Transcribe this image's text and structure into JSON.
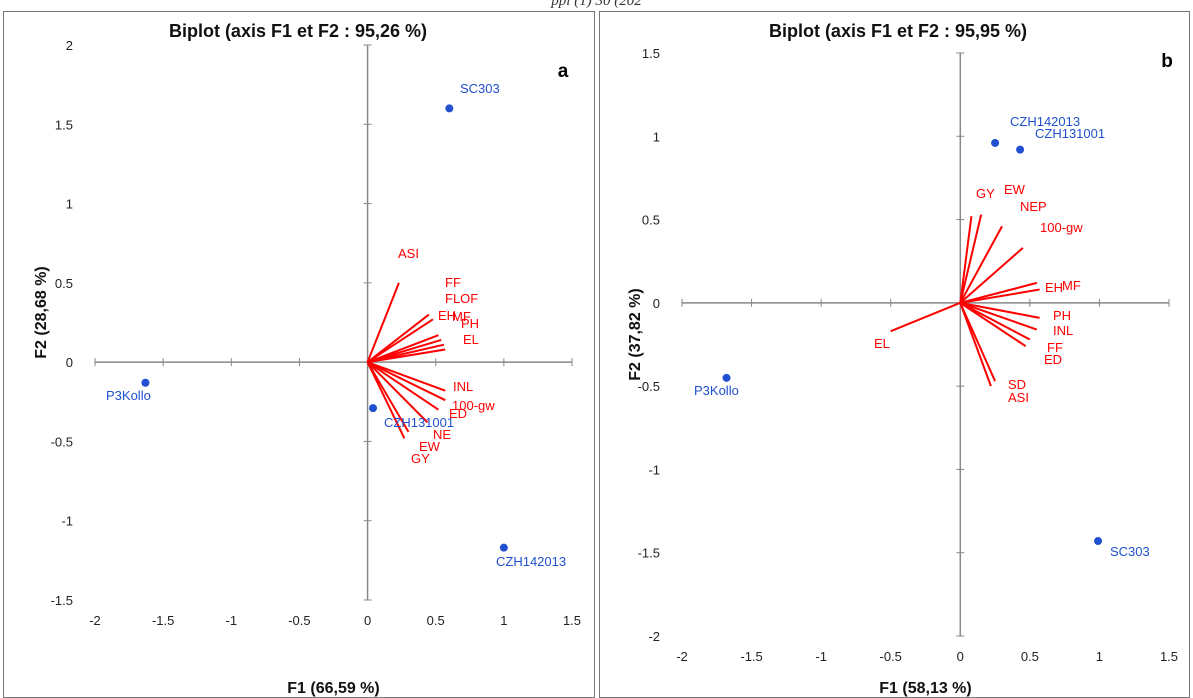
{
  "header_fragment": "ppl (1) 30 (202",
  "chart_data": [
    {
      "type": "scatter",
      "subtype": "biplot",
      "panel_letter": "a",
      "title": "Biplot (axis F1 et F2 : 95,26 %)",
      "xlabel": "F1 (66,59 %)",
      "ylabel": "F2 (28,68 %)",
      "xlim": [
        -2,
        1.5
      ],
      "ylim": [
        -1.5,
        2
      ],
      "xticks": [
        "-2",
        "-1.5",
        "-1",
        "-0.5",
        "0",
        "0.5",
        "1",
        "1.5"
      ],
      "yticks": [
        "-1.5",
        "-1",
        "-0.5",
        "0",
        "0.5",
        "1",
        "1.5",
        "2"
      ],
      "grid": false,
      "observations": [
        {
          "label": "SC303",
          "x": 0.6,
          "y": 1.6
        },
        {
          "label": "P3Kollo",
          "x": -1.63,
          "y": -0.13
        },
        {
          "label": "CZH131001",
          "x": 0.04,
          "y": -0.29
        },
        {
          "label": "CZH142013",
          "x": 1.0,
          "y": -1.17
        }
      ],
      "variables": [
        {
          "label": "ASI",
          "x": 0.23,
          "y": 0.5
        },
        {
          "label": "FF",
          "x": 0.45,
          "y": 0.3
        },
        {
          "label": "FLOF",
          "x": 0.48,
          "y": 0.27
        },
        {
          "label": "EH",
          "x": 0.52,
          "y": 0.17
        },
        {
          "label": "MF",
          "x": 0.54,
          "y": 0.14
        },
        {
          "label": "PH",
          "x": 0.56,
          "y": 0.11
        },
        {
          "label": "EL",
          "x": 0.57,
          "y": 0.08
        },
        {
          "label": "INL",
          "x": 0.57,
          "y": -0.18
        },
        {
          "label": "100-gw",
          "x": 0.57,
          "y": -0.24
        },
        {
          "label": "ED",
          "x": 0.52,
          "y": -0.3
        },
        {
          "label": "NE",
          "x": 0.44,
          "y": -0.38
        },
        {
          "label": "EW",
          "x": 0.3,
          "y": -0.44
        },
        {
          "label": "GY",
          "x": 0.27,
          "y": -0.48
        }
      ]
    },
    {
      "type": "scatter",
      "subtype": "biplot",
      "panel_letter": "b",
      "title": "Biplot (axis F1 et F2 : 95,95 %)",
      "xlabel": "F1 (58,13 %)",
      "ylabel": "F2 (37,82 %)",
      "xlim": [
        -2,
        1.5
      ],
      "ylim": [
        -2,
        1.5
      ],
      "xticks": [
        "-2",
        "-1.5",
        "-1",
        "-0.5",
        "0",
        "0.5",
        "1",
        "1.5"
      ],
      "yticks": [
        "-2",
        "-1.5",
        "-1",
        "-0.5",
        "0",
        "0.5",
        "1",
        "1.5"
      ],
      "grid": false,
      "observations": [
        {
          "label": "CZH142013",
          "x": 0.25,
          "y": 0.96
        },
        {
          "label": "CZH131001",
          "x": 0.43,
          "y": 0.92
        },
        {
          "label": "P3Kollo",
          "x": -1.68,
          "y": -0.45
        },
        {
          "label": "SC303",
          "x": 0.99,
          "y": -1.43
        }
      ],
      "variables": [
        {
          "label": "GY",
          "x": 0.08,
          "y": 0.52
        },
        {
          "label": "EW",
          "x": 0.15,
          "y": 0.53
        },
        {
          "label": "NEP",
          "x": 0.3,
          "y": 0.46
        },
        {
          "label": "100-gw",
          "x": 0.45,
          "y": 0.33
        },
        {
          "label": "EH",
          "x": 0.55,
          "y": 0.12
        },
        {
          "label": "MF",
          "x": 0.57,
          "y": 0.08
        },
        {
          "label": "PH",
          "x": 0.57,
          "y": -0.09
        },
        {
          "label": "INL",
          "x": 0.55,
          "y": -0.16
        },
        {
          "label": "FF",
          "x": 0.5,
          "y": -0.22
        },
        {
          "label": "ED",
          "x": 0.47,
          "y": -0.26
        },
        {
          "label": "SD",
          "x": 0.25,
          "y": -0.47
        },
        {
          "label": "ASI",
          "x": 0.22,
          "y": -0.5
        },
        {
          "label": "EL",
          "x": -0.5,
          "y": -0.17
        }
      ]
    }
  ]
}
